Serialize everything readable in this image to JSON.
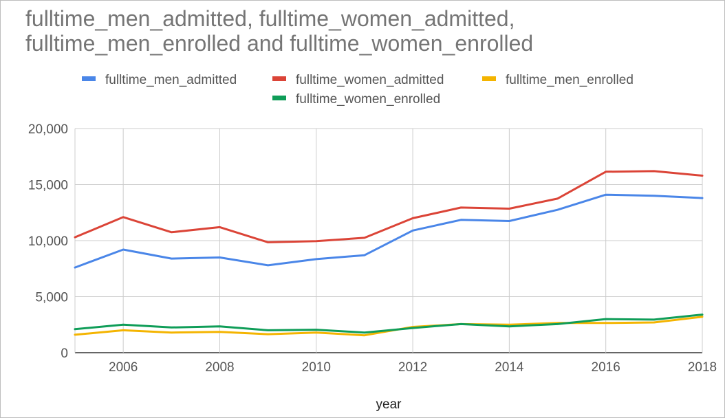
{
  "title_line1": "fulltime_men_admitted, fulltime_women_admitted,",
  "title_line2": "fulltime_men_enrolled and fulltime_women_enrolled",
  "chart_data": {
    "type": "line",
    "title": "fulltime_men_admitted, fulltime_women_admitted, fulltime_men_enrolled and fulltime_women_enrolled",
    "xlabel": "year",
    "ylabel": "",
    "x": [
      2005,
      2006,
      2007,
      2008,
      2009,
      2010,
      2011,
      2012,
      2013,
      2014,
      2015,
      2016,
      2017,
      2018
    ],
    "xlim": [
      2005,
      2018
    ],
    "ylim": [
      0,
      20000
    ],
    "x_ticks": [
      2006,
      2008,
      2010,
      2012,
      2014,
      2016,
      2018
    ],
    "x_tick_labels": [
      "2006",
      "2008",
      "2010",
      "2012",
      "2014",
      "2016",
      "2018"
    ],
    "y_ticks": [
      0,
      5000,
      10000,
      15000,
      20000
    ],
    "y_tick_labels": [
      "0",
      "5,000",
      "10,000",
      "15,000",
      "20,000"
    ],
    "grid": true,
    "legend_position": "top",
    "series": [
      {
        "name": "fulltime_men_admitted",
        "color": "#4a86e8",
        "values": [
          7600,
          9200,
          8400,
          8500,
          7800,
          8350,
          8700,
          10900,
          11850,
          11750,
          12750,
          14100,
          14000,
          13800
        ]
      },
      {
        "name": "fulltime_women_admitted",
        "color": "#db4437",
        "values": [
          10300,
          12100,
          10750,
          11200,
          9850,
          9950,
          10250,
          12000,
          12950,
          12850,
          13750,
          16150,
          16200,
          15800
        ]
      },
      {
        "name": "fulltime_men_enrolled",
        "color": "#f4b400",
        "values": [
          1600,
          2000,
          1800,
          1850,
          1650,
          1800,
          1550,
          2300,
          2550,
          2500,
          2650,
          2650,
          2700,
          3200
        ]
      },
      {
        "name": "fulltime_women_enrolled",
        "color": "#0f9d58",
        "values": [
          2100,
          2500,
          2250,
          2350,
          2000,
          2050,
          1800,
          2200,
          2550,
          2350,
          2550,
          3000,
          2950,
          3400
        ]
      }
    ]
  }
}
